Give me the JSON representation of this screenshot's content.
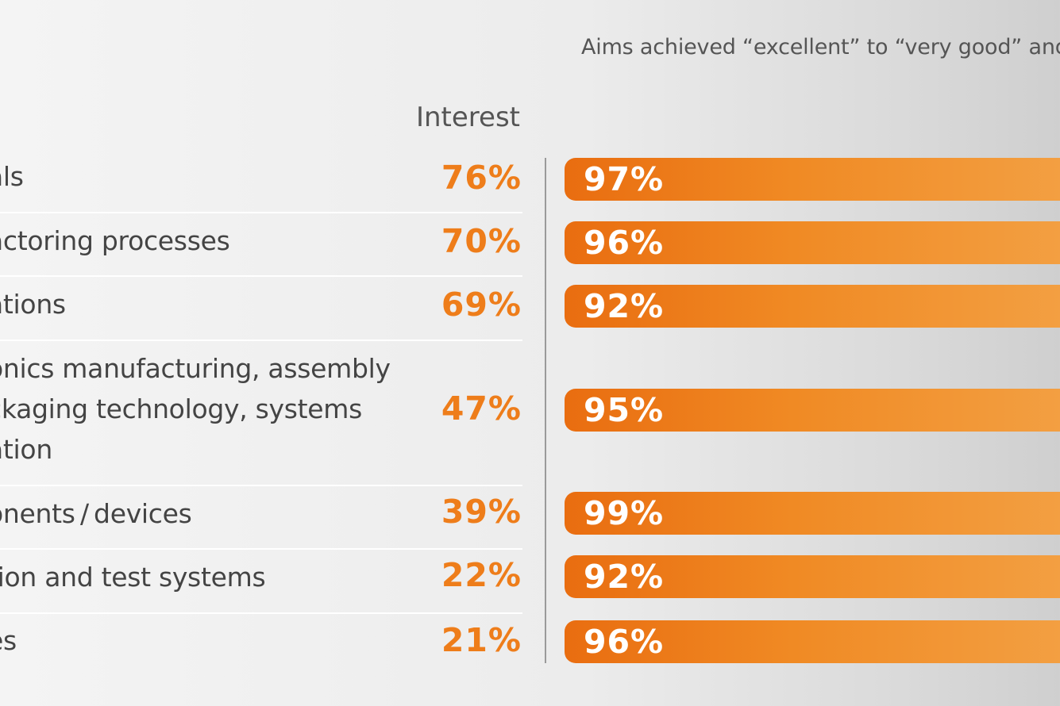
{
  "chart_data": {
    "type": "bar",
    "subtitle": "Aims achieved “excellent” to “very good” and",
    "interest_header": "Interest",
    "rows": [
      {
        "label_lines": [
          "als"
        ],
        "interest": "76%",
        "aims": "97%",
        "aims_value": 97
      },
      {
        "label_lines": [
          "actoring processes"
        ],
        "interest": "70%",
        "aims": "96%",
        "aims_value": 96
      },
      {
        "label_lines": [
          "ations"
        ],
        "interest": "69%",
        "aims": "92%",
        "aims_value": 92
      },
      {
        "label_lines": [
          "onics manufacturing, assembly",
          "ckaging technology, systems",
          "ation"
        ],
        "interest": "47%",
        "aims": "95%",
        "aims_value": 95
      },
      {
        "label_lines": [
          "onents / devices"
        ],
        "interest": "39%",
        "aims": "99%",
        "aims_value": 99
      },
      {
        "label_lines": [
          "tion and test systems"
        ],
        "interest": "22%",
        "aims": "92%",
        "aims_value": 92
      },
      {
        "label_lines": [
          "es"
        ],
        "interest": "21%",
        "aims": "96%",
        "aims_value": 96
      }
    ],
    "colors": {
      "bar_start": "#e96d10",
      "bar_end": "#f3a043",
      "interest_text": "#ee7d1a"
    }
  }
}
